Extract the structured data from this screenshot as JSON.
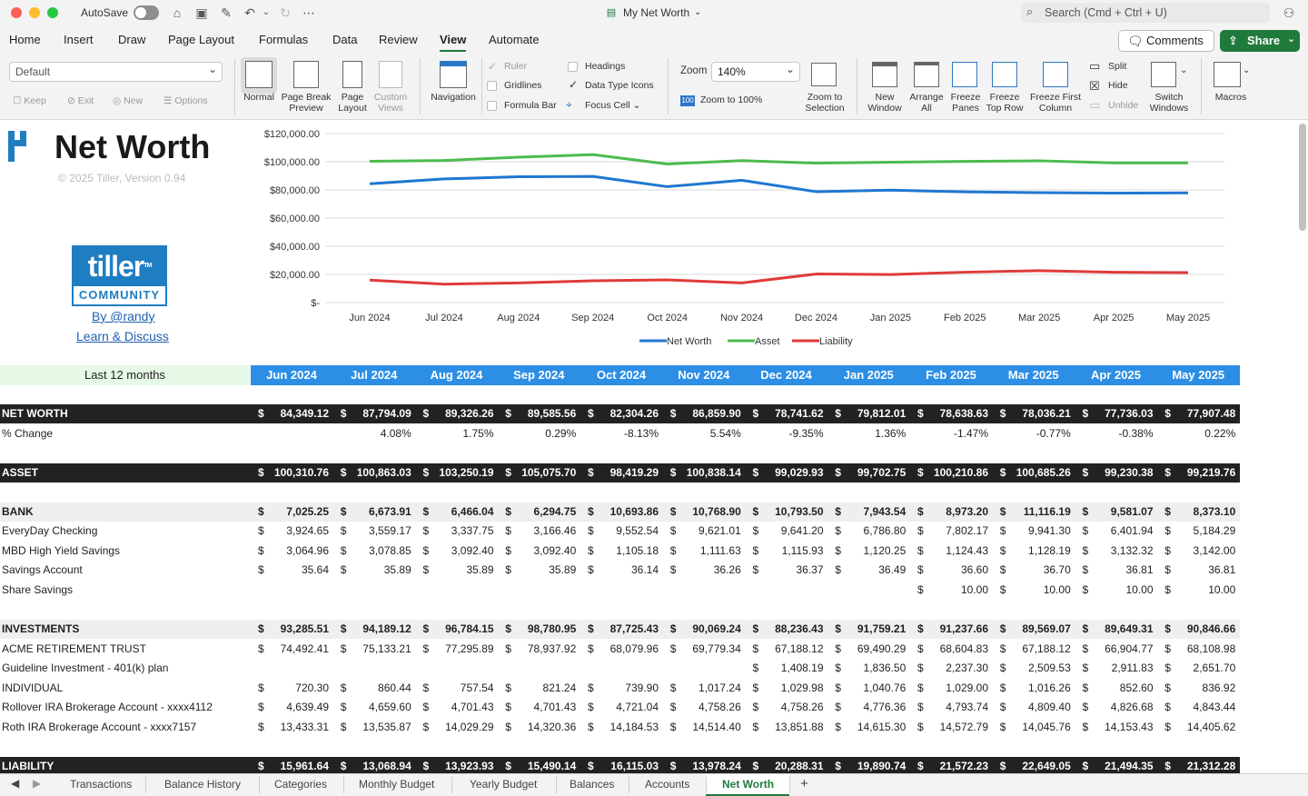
{
  "window": {
    "autosave_label": "AutoSave",
    "doc_title": "My Net Worth",
    "search_placeholder": "Search (Cmd + Ctrl + U)"
  },
  "menu": {
    "items": [
      "Home",
      "Insert",
      "Draw",
      "Page Layout",
      "Formulas",
      "Data",
      "Review",
      "View",
      "Automate"
    ],
    "active": "View",
    "comments_label": "Comments",
    "share_label": "Share"
  },
  "ribbon": {
    "sheet_view_value": "Default",
    "keep": "Keep",
    "exit": "Exit",
    "new": "New",
    "options": "Options",
    "normal": "Normal",
    "page_break_1": "Page Break",
    "page_break_2": "Preview",
    "page_layout_1": "Page",
    "page_layout_2": "Layout",
    "custom_views_1": "Custom",
    "custom_views_2": "Views",
    "navigation": "Navigation",
    "ruler": "Ruler",
    "gridlines": "Gridlines",
    "formula_bar": "Formula Bar",
    "headings": "Headings",
    "data_type_icons": "Data Type Icons",
    "focus_cell": "Focus Cell",
    "zoom_label": "Zoom",
    "zoom_value": "140%",
    "zoom_100": "Zoom to 100%",
    "zoom_sel_1": "Zoom to",
    "zoom_sel_2": "Selection",
    "new_window_1": "New",
    "new_window_2": "Window",
    "arrange_1": "Arrange",
    "arrange_2": "All",
    "freeze_1": "Freeze",
    "freeze_2": "Panes",
    "freeze_top_1": "Freeze",
    "freeze_top_2": "Top Row",
    "freeze_first_1": "Freeze First",
    "freeze_first_2": "Column",
    "split": "Split",
    "hide": "Hide",
    "unhide": "Unhide",
    "switch_1": "Switch",
    "switch_2": "Windows",
    "macros": "Macros"
  },
  "sheet": {
    "title": "Net Worth",
    "copyright": "© 2025 Tiller, Version 0.94",
    "tiller_top": "tiller",
    "tiller_tm": "TM",
    "tiller_bottom": "COMMUNITY",
    "link_by": "By @randy",
    "link_learn": "Learn & Discuss",
    "last12": "Last 12 months",
    "months": [
      "Jun 2024",
      "Jul 2024",
      "Aug 2024",
      "Sep 2024",
      "Oct 2024",
      "Nov 2024",
      "Dec 2024",
      "Jan 2025",
      "Feb 2025",
      "Mar 2025",
      "Apr 2025",
      "May 2025"
    ]
  },
  "chart_data": {
    "type": "line",
    "categories": [
      "Jun 2024",
      "Jul 2024",
      "Aug 2024",
      "Sep 2024",
      "Oct 2024",
      "Nov 2024",
      "Dec 2024",
      "Jan 2025",
      "Feb 2025",
      "Mar 2025",
      "Apr 2025",
      "May 2025"
    ],
    "y_ticks": [
      "$120,000.00",
      "$100,000.00",
      "$80,000.00",
      "$60,000.00",
      "$40,000.00",
      "$20,000.00",
      "$-"
    ],
    "ylim": [
      0,
      120000
    ],
    "legend_position": "bottom",
    "series": [
      {
        "name": "Net Worth",
        "color": "#1f77d0",
        "values": [
          84349.12,
          87794.09,
          89326.26,
          89585.56,
          82304.26,
          86859.9,
          78741.62,
          79812.01,
          78638.63,
          78036.21,
          77736.03,
          77907.48
        ]
      },
      {
        "name": "Asset",
        "color": "#4cbb4c",
        "values": [
          100310.76,
          100863.03,
          103250.19,
          105075.7,
          98419.29,
          100838.14,
          99029.93,
          99702.75,
          100210.86,
          100685.26,
          99230.38,
          99219.76
        ]
      },
      {
        "name": "Liability",
        "color": "#e03a3a",
        "values": [
          15961.64,
          13068.94,
          13923.93,
          15490.14,
          16115.03,
          13978.24,
          20288.31,
          19890.74,
          21572.23,
          22649.05,
          21494.35,
          21312.28
        ]
      }
    ]
  },
  "rows": [
    {
      "style": "dark",
      "label": "NET WORTH",
      "values": [
        "84,349.12",
        "87,794.09",
        "89,326.26",
        "89,585.56",
        "82,304.26",
        "86,859.90",
        "78,741.62",
        "79,812.01",
        "78,638.63",
        "78,036.21",
        "77,736.03",
        "77,907.48"
      ]
    },
    {
      "style": "pct",
      "label": "% Change",
      "values": [
        "",
        "4.08%",
        "1.75%",
        "0.29%",
        "-8.13%",
        "5.54%",
        "-9.35%",
        "1.36%",
        "-1.47%",
        "-0.77%",
        "-0.38%",
        "0.22%"
      ]
    },
    {
      "style": "dark",
      "label": "ASSET",
      "values": [
        "100,310.76",
        "100,863.03",
        "103,250.19",
        "105,075.70",
        "98,419.29",
        "100,838.14",
        "99,029.93",
        "99,702.75",
        "100,210.86",
        "100,685.26",
        "99,230.38",
        "99,219.76"
      ]
    },
    {
      "style": "grey",
      "label": "BANK",
      "values": [
        "7,025.25",
        "6,673.91",
        "6,466.04",
        "6,294.75",
        "10,693.86",
        "10,768.90",
        "10,793.50",
        "7,943.54",
        "8,973.20",
        "11,116.19",
        "9,581.07",
        "8,373.10"
      ]
    },
    {
      "style": "plain",
      "label": "EveryDay Checking",
      "values": [
        "3,924.65",
        "3,559.17",
        "3,337.75",
        "3,166.46",
        "9,552.54",
        "9,621.01",
        "9,641.20",
        "6,786.80",
        "7,802.17",
        "9,941.30",
        "6,401.94",
        "5,184.29"
      ]
    },
    {
      "style": "plain",
      "label": "MBD High Yield Savings",
      "values": [
        "3,064.96",
        "3,078.85",
        "3,092.40",
        "3,092.40",
        "1,105.18",
        "1,111.63",
        "1,115.93",
        "1,120.25",
        "1,124.43",
        "1,128.19",
        "3,132.32",
        "3,142.00"
      ]
    },
    {
      "style": "plain",
      "label": "Savings Account",
      "values": [
        "35.64",
        "35.89",
        "35.89",
        "35.89",
        "36.14",
        "36.26",
        "36.37",
        "36.49",
        "36.60",
        "36.70",
        "36.81",
        "36.81"
      ]
    },
    {
      "style": "plain",
      "label": "Share Savings",
      "values": [
        "",
        "",
        "",
        "",
        "",
        "",
        "",
        "",
        "10.00",
        "10.00",
        "10.00",
        "10.00"
      ]
    },
    {
      "style": "grey",
      "label": "INVESTMENTS",
      "values": [
        "93,285.51",
        "94,189.12",
        "96,784.15",
        "98,780.95",
        "87,725.43",
        "90,069.24",
        "88,236.43",
        "91,759.21",
        "91,237.66",
        "89,569.07",
        "89,649.31",
        "90,846.66"
      ]
    },
    {
      "style": "plain",
      "label": "ACME RETIREMENT TRUST",
      "values": [
        "74,492.41",
        "75,133.21",
        "77,295.89",
        "78,937.92",
        "68,079.96",
        "69,779.34",
        "67,188.12",
        "69,490.29",
        "68,604.83",
        "67,188.12",
        "66,904.77",
        "68,108.98"
      ]
    },
    {
      "style": "plain",
      "label": "Guideline Investment - 401(k) plan",
      "values": [
        "",
        "",
        "",
        "",
        "",
        "",
        "1,408.19",
        "1,836.50",
        "2,237.30",
        "2,509.53",
        "2,911.83",
        "2,651.70"
      ]
    },
    {
      "style": "plain",
      "label": "INDIVIDUAL",
      "values": [
        "720.30",
        "860.44",
        "757.54",
        "821.24",
        "739.90",
        "1,017.24",
        "1,029.98",
        "1,040.76",
        "1,029.00",
        "1,016.26",
        "852.60",
        "836.92"
      ]
    },
    {
      "style": "plain",
      "label": "Rollover IRA Brokerage Account - xxxx4112",
      "values": [
        "4,639.49",
        "4,659.60",
        "4,701.43",
        "4,701.43",
        "4,721.04",
        "4,758.26",
        "4,758.26",
        "4,776.36",
        "4,793.74",
        "4,809.40",
        "4,826.68",
        "4,843.44"
      ]
    },
    {
      "style": "plain",
      "label": "Roth IRA Brokerage Account - xxxx7157",
      "values": [
        "13,433.31",
        "13,535.87",
        "14,029.29",
        "14,320.36",
        "14,184.53",
        "14,514.40",
        "13,851.88",
        "14,615.30",
        "14,572.79",
        "14,045.76",
        "14,153.43",
        "14,405.62"
      ]
    },
    {
      "style": "dark",
      "label": "LIABILITY",
      "values": [
        "15,961.64",
        "13,068.94",
        "13,923.93",
        "15,490.14",
        "16,115.03",
        "13,978.24",
        "20,288.31",
        "19,890.74",
        "21,572.23",
        "22,649.05",
        "21,494.35",
        "21,312.28"
      ]
    }
  ],
  "currency_symbol": "$",
  "tabs": {
    "items": [
      "Transactions",
      "Balance History",
      "Categories",
      "Monthly Budget",
      "Yearly Budget",
      "Balances",
      "Accounts",
      "Net Worth"
    ],
    "active": "Net Worth",
    "add": "+"
  }
}
